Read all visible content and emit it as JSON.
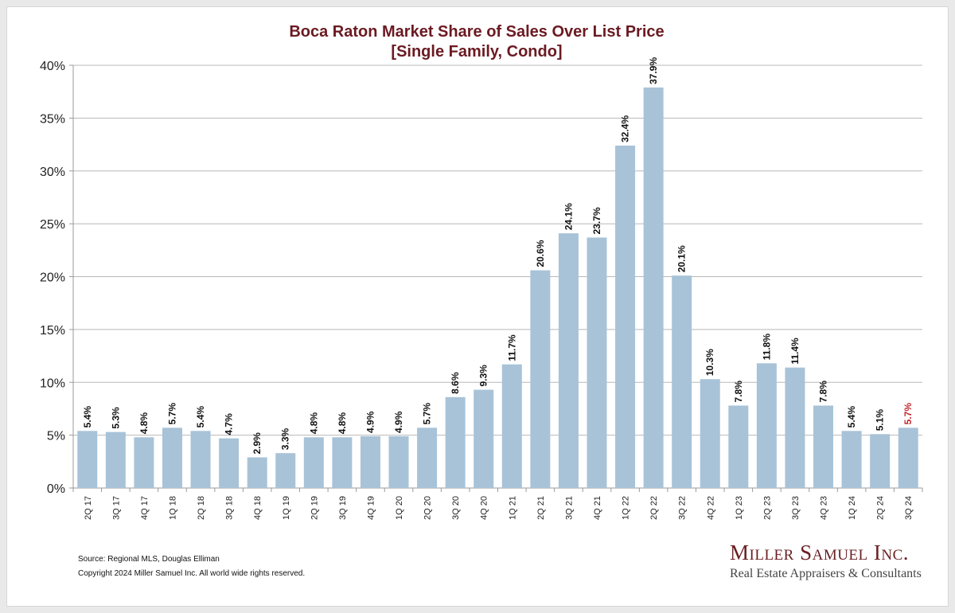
{
  "chart_data": {
    "type": "bar",
    "title": "Boca Raton Market Share of Sales Over List Price",
    "subtitle": "[Single Family, Condo]",
    "xlabel": "",
    "ylabel": "",
    "ylim": [
      0,
      40
    ],
    "yticks": [
      "0%",
      "5%",
      "10%",
      "15%",
      "20%",
      "25%",
      "30%",
      "35%",
      "40%"
    ],
    "grid": true,
    "categories": [
      "2Q 17",
      "3Q 17",
      "4Q 17",
      "1Q 18",
      "2Q 18",
      "3Q 18",
      "4Q 18",
      "1Q 19",
      "2Q 19",
      "3Q 19",
      "4Q 19",
      "1Q 20",
      "2Q 20",
      "3Q 20",
      "4Q 20",
      "1Q 21",
      "2Q 21",
      "3Q 21",
      "4Q 21",
      "1Q 22",
      "2Q 22",
      "3Q 22",
      "4Q 22",
      "1Q 23",
      "2Q 23",
      "3Q 23",
      "4Q 23",
      "1Q 24",
      "2Q 24",
      "3Q 24"
    ],
    "values": [
      5.4,
      5.3,
      4.8,
      5.7,
      5.4,
      4.7,
      2.9,
      3.3,
      4.8,
      4.8,
      4.9,
      4.9,
      5.7,
      8.6,
      9.3,
      11.7,
      20.6,
      24.1,
      23.7,
      32.4,
      37.9,
      20.1,
      10.3,
      7.8,
      11.8,
      11.4,
      7.8,
      5.4,
      5.1,
      5.7
    ],
    "labels": [
      "5.4%",
      "5.3%",
      "4.8%",
      "5.7%",
      "5.4%",
      "4.7%",
      "2.9%",
      "3.3%",
      "4.8%",
      "4.8%",
      "4.9%",
      "4.9%",
      "5.7%",
      "8.6%",
      "9.3%",
      "11.7%",
      "20.6%",
      "24.1%",
      "23.7%",
      "32.4%",
      "37.9%",
      "20.1%",
      "10.3%",
      "7.8%",
      "11.8%",
      "11.4%",
      "7.8%",
      "5.4%",
      "5.1%",
      "5.7%"
    ]
  },
  "colors": {
    "bar": "#a8c3d8",
    "title": "#6b1a22",
    "label": "#111111",
    "highlight_label": "#c0282d",
    "grid": "#b8b8b8"
  },
  "footer": {
    "source": "Source: Regional MLS, Douglas Elliman",
    "copyright": "Copyright 2024 Miller Samuel Inc.  All world wide rights reserved."
  },
  "logo": {
    "name": "Miller Samuel Inc.",
    "tagline": "Real Estate Appraisers & Consultants"
  }
}
